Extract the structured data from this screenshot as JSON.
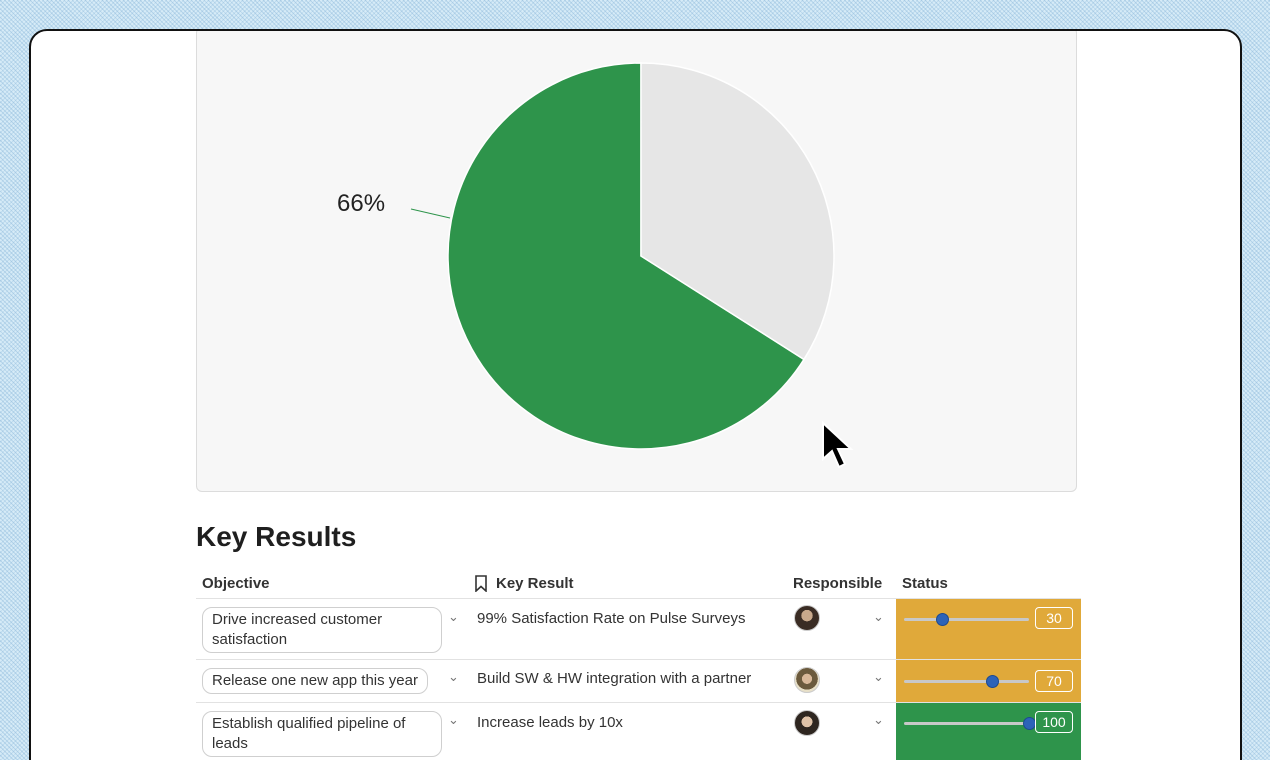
{
  "chart_data": {
    "type": "pie",
    "slices": [
      {
        "value": 66,
        "color": "#2e944b"
      },
      {
        "value": 34,
        "color": "#e6e6e6"
      }
    ],
    "data_label": "66%"
  },
  "key_results": {
    "title": "Key Results",
    "columns": {
      "objective": "Objective",
      "key_result": "Key Result",
      "responsible": "Responsible",
      "status": "Status"
    },
    "rows": [
      {
        "objective": "Drive increased customer satisfaction",
        "key_result": "99% Satisfaction Rate on Pulse Surveys",
        "status": 30,
        "status_label": "30",
        "status_color": "#e0a93a"
      },
      {
        "objective": "Release one new app this year",
        "key_result": "Build SW & HW integration with a partner",
        "status": 70,
        "status_label": "70",
        "status_color": "#e0a93a"
      },
      {
        "objective": "Establish qualified pipeline of leads",
        "key_result": "Increase leads by 10x",
        "status": 100,
        "status_label": "100",
        "status_color": "#2e944b"
      }
    ]
  },
  "icons": {
    "bookmark": "bookmark-icon",
    "chevron": "chevron-down-icon",
    "cursor": "mouse-cursor-icon"
  }
}
